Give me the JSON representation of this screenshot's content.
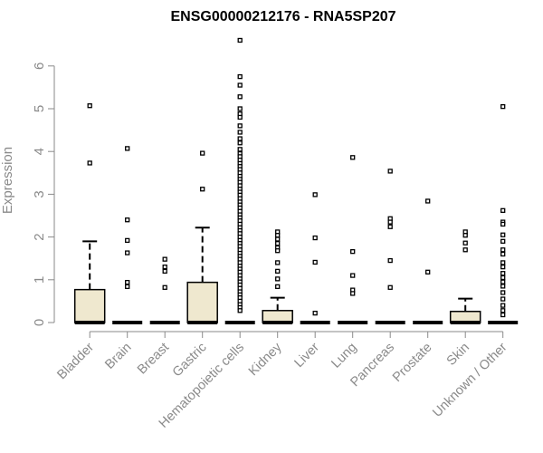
{
  "chart_data": {
    "type": "boxplot",
    "title": "ENSG00000212176 - RNA5SP207",
    "xlabel": "",
    "ylabel": "Expression",
    "ylim": [
      0,
      6.7
    ],
    "yticks": [
      0,
      1,
      2,
      3,
      4,
      5,
      6
    ],
    "grid": false,
    "legend": "none",
    "box_color": "#efe8cf",
    "categories": [
      "Bladder",
      "Brain",
      "Breast",
      "Gastric",
      "Hematopoietic cells",
      "Kidney",
      "Liver",
      "Lung",
      "Pancreas",
      "Prostate",
      "Skin",
      "Unknown / Other"
    ],
    "boxes": [
      {
        "name": "Bladder",
        "q1": 0,
        "median": 0,
        "q3": 0.77,
        "whisker_low": 0,
        "whisker_high": 1.9,
        "outliers": [
          5.07,
          3.73
        ]
      },
      {
        "name": "Brain",
        "q1": 0,
        "median": 0,
        "q3": 0,
        "whisker_low": 0,
        "whisker_high": 0,
        "outliers": [
          4.07,
          2.4,
          1.92,
          1.63,
          0.94,
          0.84
        ]
      },
      {
        "name": "Breast",
        "q1": 0,
        "median": 0,
        "q3": 0,
        "whisker_low": 0,
        "whisker_high": 0,
        "outliers": [
          1.48,
          1.3,
          1.2,
          0.82
        ]
      },
      {
        "name": "Gastric",
        "q1": 0,
        "median": 0,
        "q3": 0.94,
        "whisker_low": 0,
        "whisker_high": 2.22,
        "outliers": [
          3.96,
          3.12
        ]
      },
      {
        "name": "Hematopoietic cells",
        "q1": 0,
        "median": 0,
        "q3": 0,
        "whisker_low": 0,
        "whisker_high": 0,
        "outliers": [
          6.6,
          5.75,
          5.55,
          5.28,
          5.0,
          4.88,
          4.8,
          4.6,
          4.45,
          4.3,
          4.2,
          4.05,
          3.95,
          3.88,
          3.8,
          3.72,
          3.65,
          3.58,
          3.5,
          3.42,
          3.35,
          3.28,
          3.2,
          3.12,
          3.05,
          2.98,
          2.9,
          2.82,
          2.75,
          2.68,
          2.6,
          2.52,
          2.45,
          2.38,
          2.3,
          2.22,
          2.15,
          2.08,
          2.0,
          1.92,
          1.85,
          1.78,
          1.7,
          1.62,
          1.55,
          1.48,
          1.4,
          1.32,
          1.25,
          1.18,
          1.1,
          1.02,
          0.95,
          0.88,
          0.8,
          0.72,
          0.65,
          0.58,
          0.5,
          0.42,
          0.35,
          0.28
        ]
      },
      {
        "name": "Kidney",
        "q1": 0,
        "median": 0,
        "q3": 0.28,
        "whisker_low": 0,
        "whisker_high": 0.58,
        "outliers": [
          2.12,
          2.04,
          1.95,
          1.85,
          1.75,
          1.68,
          1.4,
          1.2,
          1.02,
          0.84
        ]
      },
      {
        "name": "Liver",
        "q1": 0,
        "median": 0,
        "q3": 0,
        "whisker_low": 0,
        "whisker_high": 0,
        "outliers": [
          2.99,
          1.98,
          1.41,
          0.22
        ]
      },
      {
        "name": "Lung",
        "q1": 0,
        "median": 0,
        "q3": 0,
        "whisker_low": 0,
        "whisker_high": 0,
        "outliers": [
          3.86,
          1.66,
          1.1,
          0.76,
          0.68
        ]
      },
      {
        "name": "Pancreas",
        "q1": 0,
        "median": 0,
        "q3": 0,
        "whisker_low": 0,
        "whisker_high": 0,
        "outliers": [
          3.54,
          2.43,
          2.35,
          2.24,
          1.45,
          0.82
        ]
      },
      {
        "name": "Prostate",
        "q1": 0,
        "median": 0,
        "q3": 0,
        "whisker_low": 0,
        "whisker_high": 0,
        "outliers": [
          2.84,
          1.18
        ]
      },
      {
        "name": "Skin",
        "q1": 0,
        "median": 0,
        "q3": 0.26,
        "whisker_low": 0,
        "whisker_high": 0.56,
        "outliers": [
          2.12,
          2.04,
          1.86,
          1.7
        ]
      },
      {
        "name": "Unknown / Other",
        "q1": 0,
        "median": 0,
        "q3": 0,
        "whisker_low": 0,
        "whisker_high": 0,
        "outliers": [
          5.05,
          2.62,
          2.35,
          2.3,
          2.05,
          1.9,
          1.7,
          1.6,
          1.4,
          1.3,
          1.15,
          1.05,
          0.95,
          0.85,
          0.7,
          0.55,
          0.4,
          0.28,
          0.18
        ]
      }
    ]
  }
}
